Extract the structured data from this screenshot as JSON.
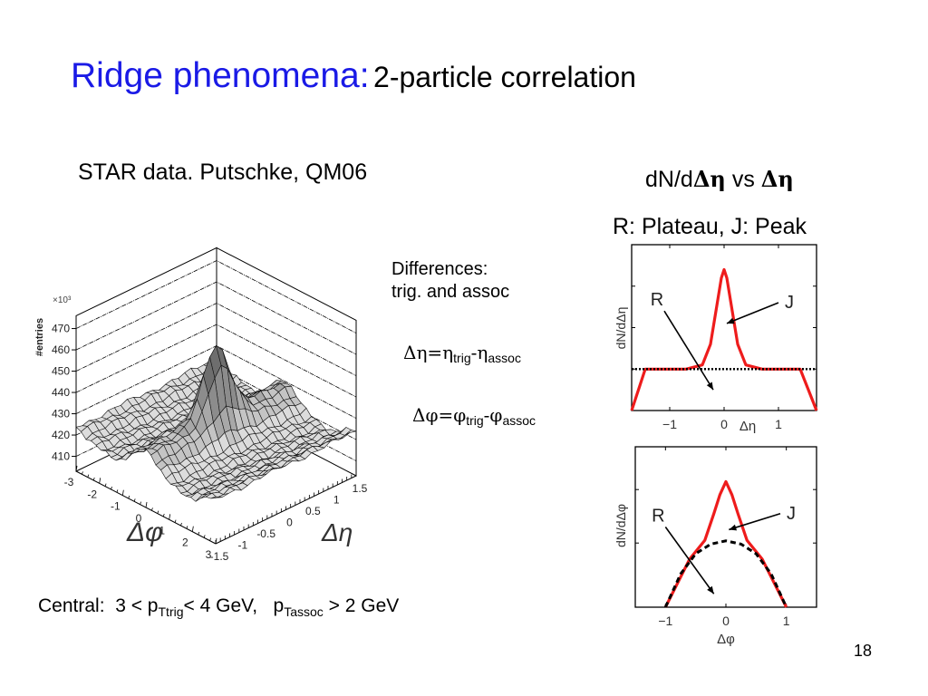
{
  "slide": {
    "title_main": "Ridge phenomena:",
    "title_sub": "2-particle correlation",
    "source": "STAR data.  Putschke, QM06",
    "deta_title_prefix": "dN/d",
    "deta_title_sym1": "Δη",
    "deta_title_mid": " vs ",
    "deta_title_sym2": "Δη",
    "plateau_text": "R: Plateau, J: Peak",
    "differences_line1": "Differences:",
    "differences_line2": "trig. and assoc",
    "formula_eta": {
      "lhs": "Δη=η",
      "sub1": "trig",
      "mid": "-η",
      "sub2": "assoc"
    },
    "formula_phi": {
      "lhs": "Δφ=φ",
      "sub1": "trig",
      "mid": "-φ",
      "sub2": "assoc"
    },
    "central": {
      "prefix": "Central:  3 < p",
      "sub1": "Ttrig",
      "mid": "< 4 GeV,   p",
      "sub2": "Tassoc",
      "suffix": " > 2 GeV"
    },
    "page_number": "18",
    "accent_color": "#1a1ae6",
    "curve_color": "#ee1c1c"
  },
  "chart_data": [
    {
      "type": "surface3d",
      "title": "",
      "zlabel": "#entries",
      "zscale": "×10³",
      "z_ticks": [
        "410",
        "420",
        "430",
        "440",
        "450",
        "460",
        "470"
      ],
      "xlabel": "Δφ",
      "x_ticks": [
        "-3",
        "-2",
        "-1",
        "0",
        "1",
        "2",
        "3"
      ],
      "ylabel": "Δη",
      "y_ticks": [
        "-1.5",
        "-1",
        "-0.5",
        "0",
        "0.5",
        "1",
        "1.5"
      ],
      "peak": {
        "dphi": 0,
        "deta": 0,
        "value": 463
      },
      "ridge_level": 430,
      "background_level": 418
    },
    {
      "type": "line",
      "xlabel": "Δη",
      "ylabel": "dN/dΔη",
      "x_ticks": [
        "-1",
        "0",
        "1"
      ],
      "xlim": [
        -1.7,
        1.7
      ],
      "ylim": [
        0,
        4
      ],
      "series": [
        {
          "name": "J",
          "style": "solid-red",
          "x": [
            -1.7,
            -1.45,
            -0.7,
            -0.4,
            -0.25,
            -0.15,
            -0.05,
            0,
            0.05,
            0.15,
            0.25,
            0.4,
            0.7,
            1.4,
            1.7
          ],
          "y": [
            0,
            1.0,
            1.0,
            1.1,
            1.6,
            2.4,
            3.2,
            3.4,
            3.2,
            2.4,
            1.6,
            1.1,
            1.0,
            1.0,
            0
          ]
        },
        {
          "name": "R",
          "style": "dotted-black",
          "x": [
            -1.7,
            1.7
          ],
          "y": [
            1.0,
            1.0
          ]
        }
      ],
      "annotations": [
        {
          "label": "R",
          "from": [
            -1.1,
            2.4
          ],
          "to": [
            -0.2,
            0.5
          ]
        },
        {
          "label": "J",
          "from": [
            1.0,
            2.6
          ],
          "to": [
            0.05,
            2.1
          ]
        }
      ]
    },
    {
      "type": "line",
      "xlabel": "Δφ",
      "ylabel": "dN/dΔφ",
      "x_ticks": [
        "-1",
        "0",
        "1"
      ],
      "xlim": [
        -1.5,
        1.5
      ],
      "ylim": [
        0,
        3
      ],
      "series": [
        {
          "name": "J",
          "style": "solid-red",
          "x": [
            -1.0,
            -0.6,
            -0.35,
            -0.2,
            -0.1,
            0,
            0.1,
            0.2,
            0.35,
            0.6,
            1.0
          ],
          "y": [
            0,
            0.9,
            1.25,
            1.75,
            2.1,
            2.35,
            2.1,
            1.75,
            1.25,
            0.9,
            0
          ]
        },
        {
          "name": "R",
          "style": "dashed-black",
          "x": [
            -1.0,
            -0.75,
            -0.5,
            -0.25,
            0,
            0.25,
            0.5,
            0.75,
            1.0
          ],
          "y": [
            0,
            0.62,
            1.0,
            1.18,
            1.24,
            1.18,
            1.0,
            0.62,
            0
          ]
        }
      ],
      "annotations": [
        {
          "label": "R",
          "from": [
            -1.0,
            1.5
          ],
          "to": [
            -0.2,
            0.25
          ]
        },
        {
          "label": "J",
          "from": [
            0.9,
            1.75
          ],
          "to": [
            0.05,
            1.45
          ]
        }
      ]
    }
  ]
}
